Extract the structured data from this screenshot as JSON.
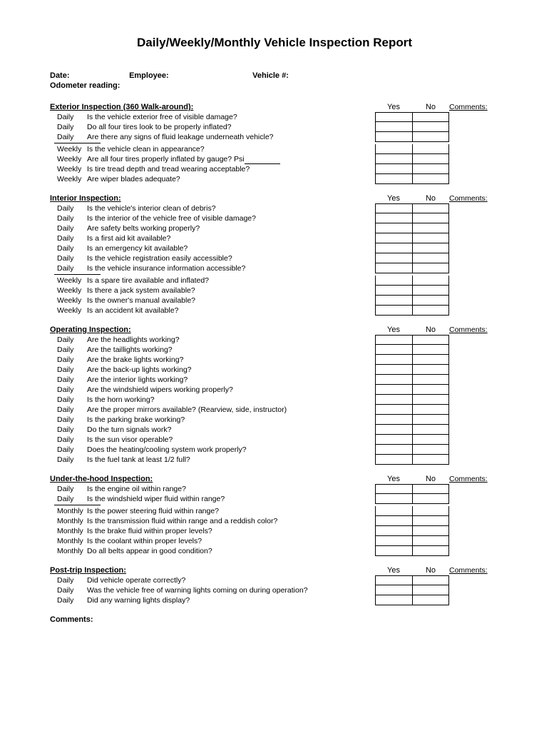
{
  "title": "Daily/Weekly/Monthly Vehicle Inspection Report",
  "header": {
    "date": "Date:",
    "employee": "Employee:",
    "vehicle": "Vehicle #:",
    "odometer": "Odometer reading:"
  },
  "columns": {
    "yes": "Yes",
    "no": "No",
    "comments": "Comments:"
  },
  "sections": [
    {
      "title": "Exterior Inspection (360 Walk-around):",
      "groups": [
        [
          {
            "freq": "Daily",
            "q": "Is the vehicle exterior free of visible damage?"
          },
          {
            "freq": "Daily",
            "q": "Do all four tires look to be properly inflated?"
          },
          {
            "freq": "Daily",
            "q": "Are there any signs of fluid leakage underneath vehicle?"
          }
        ],
        [
          {
            "freq": "Weekly",
            "q": "Is the vehicle clean in appearance?"
          },
          {
            "freq": "Weekly",
            "q": "Are all four tires properly inflated by gauge?  Psi",
            "psi": true
          },
          {
            "freq": "Weekly",
            "q": "Is tire tread depth and tread wearing acceptable?"
          },
          {
            "freq": "Weekly",
            "q": "Are wiper blades adequate?"
          }
        ]
      ]
    },
    {
      "title": "Interior Inspection:",
      "groups": [
        [
          {
            "freq": "Daily",
            "q": "Is the vehicle's interior clean of debris?"
          },
          {
            "freq": "Daily",
            "q": "Is the interior of the vehicle free of visible damage?"
          },
          {
            "freq": "Daily",
            "q": "Are safety belts working properly?"
          },
          {
            "freq": "Daily",
            "q": "Is a first aid kit available?"
          },
          {
            "freq": "Daily",
            "q": "Is an emergency kit available?"
          },
          {
            "freq": "Daily",
            "q": "Is the vehicle registration easily accessible?"
          },
          {
            "freq": "Daily",
            "q": "Is the vehicle insurance information accessible?"
          }
        ],
        [
          {
            "freq": "Weekly",
            "q": "Is a spare tire available and inflated?"
          },
          {
            "freq": "Weekly",
            "q": "Is there a jack system available?"
          },
          {
            "freq": "Weekly",
            "q": "Is the owner's manual available?"
          },
          {
            "freq": "Weekly",
            "q": "Is an accident kit available?"
          }
        ]
      ]
    },
    {
      "title": "Operating Inspection:",
      "groups": [
        [
          {
            "freq": "Daily",
            "q": "Are the headlights working?"
          },
          {
            "freq": "Daily",
            "q": "Are the taillights working?"
          },
          {
            "freq": "Daily",
            "q": "Are the brake lights working?"
          },
          {
            "freq": "Daily",
            "q": "Are the back-up lights working?"
          },
          {
            "freq": "Daily",
            "q": "Are the interior lights working?"
          },
          {
            "freq": "Daily",
            "q": "Are the windshield wipers working properly?"
          },
          {
            "freq": "Daily",
            "q": "Is the horn working?"
          },
          {
            "freq": "Daily",
            "q": "Are the proper mirrors available? (Rearview, side, instructor)"
          },
          {
            "freq": "Daily",
            "q": "Is the parking brake working?"
          },
          {
            "freq": "Daily",
            "q": "Do the turn signals work?"
          },
          {
            "freq": "Daily",
            "q": "Is the sun visor operable?"
          },
          {
            "freq": "Daily",
            "q": "Does the heating/cooling system work properly?"
          },
          {
            "freq": "Daily",
            "q": "Is the fuel tank at least 1/2 full?"
          }
        ]
      ]
    },
    {
      "title": "Under-the-hood Inspection:",
      "groups": [
        [
          {
            "freq": "Daily",
            "q": "Is the engine oil within range?"
          },
          {
            "freq": "Daily",
            "q": "Is the windshield wiper fluid within range?"
          }
        ],
        [
          {
            "freq": "Monthly",
            "q": "Is the power steering fluid within range?"
          },
          {
            "freq": "Monthly",
            "q": "Is the transmission fluid within range and a reddish color?"
          },
          {
            "freq": "Monthly",
            "q": "Is the brake fluid within proper levels?"
          },
          {
            "freq": "Monthly",
            "q": "Is the coolant within proper levels?"
          },
          {
            "freq": "Monthly",
            "q": "Do all belts appear in good condition?"
          }
        ]
      ]
    },
    {
      "title": "Post-trip Inspection:",
      "groups": [
        [
          {
            "freq": "Daily",
            "q": "Did vehicle operate correctly?"
          },
          {
            "freq": "Daily",
            "q": "Was the vehicle free of warning lights coming on during operation?"
          },
          {
            "freq": "Daily",
            "q": "Did any warning lights display?"
          }
        ]
      ]
    }
  ],
  "footer": {
    "comments": "Comments:"
  }
}
